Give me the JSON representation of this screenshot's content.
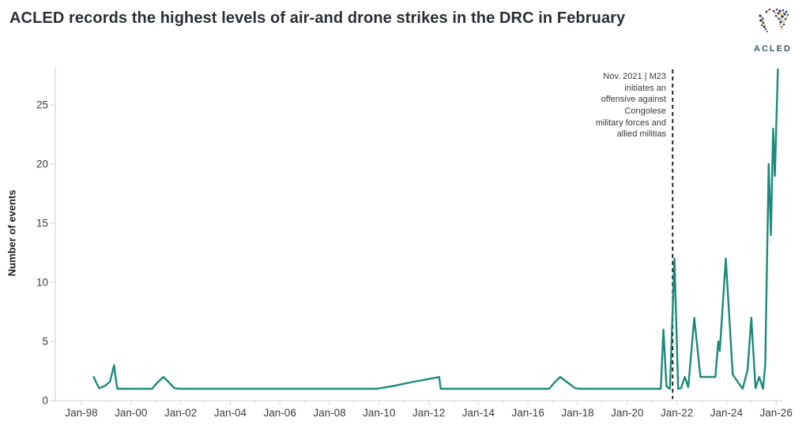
{
  "header": {
    "title": "ACLED records the highest levels of air-and drone strikes in the DRC in February",
    "logo_text": "ACLED"
  },
  "colors": {
    "line": "#1b8a7a",
    "title_text": "#2b2e36",
    "axis_line": "#d9d9d9",
    "tick_text": "#3d3d3d",
    "annotation_text": "#3a3a3a",
    "annotation_dash": "#111111",
    "logo_navy": "#2c3c63",
    "logo_gold": "#e2a637"
  },
  "chart_data": {
    "type": "line",
    "title": "ACLED records the highest levels of air-and drone strikes in the DRC in February",
    "xlabel": "",
    "ylabel": "Number of events",
    "x_tick_labels": [
      "Jan-98",
      "Jan-00",
      "Jan-02",
      "Jan-04",
      "Jan-06",
      "Jan-08",
      "Jan-10",
      "Jan-12",
      "Jan-14",
      "Jan-16",
      "Jan-18",
      "Jan-20",
      "Jan-22",
      "Jan-24",
      "Jan-26"
    ],
    "x_tick_years": [
      1998,
      2000,
      2002,
      2004,
      2006,
      2008,
      2010,
      2012,
      2014,
      2016,
      2018,
      2020,
      2022,
      2024,
      2026
    ],
    "minor_tick_years": [
      1999,
      2001,
      2003,
      2005,
      2007,
      2009,
      2011,
      2013,
      2015,
      2017,
      2019,
      2021,
      2023,
      2025
    ],
    "y_ticks": [
      0,
      5,
      10,
      15,
      20,
      25
    ],
    "ylim": [
      0,
      28
    ],
    "xlim": [
      1996.95,
      2026.25
    ],
    "grid": false,
    "legend": "none",
    "series": [
      {
        "name": "Air and drone strike events per month, DRC",
        "points": [
          [
            1998.5,
            2
          ],
          [
            1998.58,
            1.6
          ],
          [
            1998.72,
            1.05
          ],
          [
            1998.95,
            1.25
          ],
          [
            1999.15,
            1.6
          ],
          [
            1999.32,
            3
          ],
          [
            1999.4,
            1.6
          ],
          [
            1999.45,
            1
          ],
          [
            2000.85,
            1
          ],
          [
            2001.05,
            1.5
          ],
          [
            2001.3,
            2
          ],
          [
            2001.5,
            1.6
          ],
          [
            2001.75,
            1.05
          ],
          [
            2002.0,
            1
          ],
          [
            2009.9,
            1
          ],
          [
            2010.6,
            1.25
          ],
          [
            2011.4,
            1.6
          ],
          [
            2012.3,
            1.95
          ],
          [
            2012.42,
            2
          ],
          [
            2012.48,
            1
          ],
          [
            2016.85,
            1
          ],
          [
            2017.1,
            1.6
          ],
          [
            2017.3,
            2
          ],
          [
            2017.55,
            1.6
          ],
          [
            2017.9,
            1.05
          ],
          [
            2018.1,
            1
          ],
          [
            2021.35,
            1
          ],
          [
            2021.46,
            6
          ],
          [
            2021.58,
            1.2
          ],
          [
            2021.72,
            1
          ],
          [
            2021.9,
            12
          ],
          [
            2022.05,
            1
          ],
          [
            2022.17,
            1.05
          ],
          [
            2022.32,
            2
          ],
          [
            2022.46,
            1.15
          ],
          [
            2022.7,
            7
          ],
          [
            2022.95,
            2
          ],
          [
            2023.55,
            2
          ],
          [
            2023.67,
            5
          ],
          [
            2023.73,
            4.2
          ],
          [
            2023.97,
            12
          ],
          [
            2024.25,
            2.2
          ],
          [
            2024.65,
            1
          ],
          [
            2024.85,
            2.6
          ],
          [
            2025.0,
            7
          ],
          [
            2025.17,
            1.05
          ],
          [
            2025.32,
            2
          ],
          [
            2025.47,
            1
          ],
          [
            2025.56,
            3
          ],
          [
            2025.7,
            20
          ],
          [
            2025.79,
            14
          ],
          [
            2025.88,
            23
          ],
          [
            2025.95,
            19
          ],
          [
            2026.07,
            28
          ]
        ]
      }
    ],
    "annotation": {
      "text_lines": [
        "Nov. 2021 | M23",
        "initiates an",
        "offensive against",
        "Congolese",
        "military forces and",
        "allied militias"
      ],
      "x_year": 2021.83,
      "line_style": "dashed"
    }
  }
}
